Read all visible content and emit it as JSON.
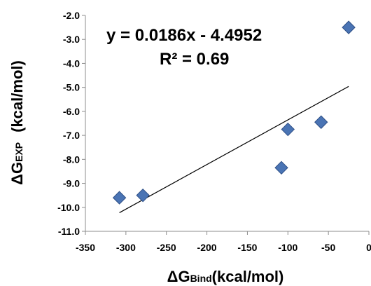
{
  "chart_data": {
    "type": "scatter",
    "title": "",
    "xlabel": {
      "prefix": "ΔG",
      "sub": "Bind",
      "suffix": "(kcal/mol)"
    },
    "ylabel": {
      "prefix": "ΔG",
      "sub": "EXP",
      "suffix": "(kcal/mol)"
    },
    "xlim": [
      -350,
      0
    ],
    "ylim": [
      -11.0,
      -2.0
    ],
    "xticks": [
      -350,
      -300,
      -250,
      -200,
      -150,
      -100,
      -50,
      0
    ],
    "yticks": [
      -2.0,
      -3.0,
      -4.0,
      -5.0,
      -6.0,
      -7.0,
      -8.0,
      -9.0,
      -10.0,
      -11.0
    ],
    "xtick_labels": [
      "-350",
      "-300",
      "-250",
      "-200",
      "-150",
      "-100",
      "-50",
      "0"
    ],
    "ytick_labels": [
      "-2.0",
      "-3.0",
      "-4.0",
      "-5.0",
      "-6.0",
      "-7.0",
      "-8.0",
      "-9.0",
      "-10.0",
      "-11.0"
    ],
    "grid": false,
    "legend": "none",
    "marker": "diamond",
    "marker_color": "#4A74B4",
    "marker_edge_color": "#2E4F86",
    "series": [
      {
        "x": [
          -308,
          -279,
          -108,
          -100,
          -59,
          -25
        ],
        "y": [
          -9.6,
          -9.5,
          -8.35,
          -6.75,
          -6.45,
          -2.5
        ]
      }
    ],
    "trendline": {
      "slope": 0.0186,
      "intercept": -4.4952,
      "x_range": [
        -308,
        -25
      ],
      "color": "#000000"
    },
    "annotations": {
      "equation": "y = 0.0186x - 4.4952",
      "r2_text": "R² = 0.69"
    }
  }
}
